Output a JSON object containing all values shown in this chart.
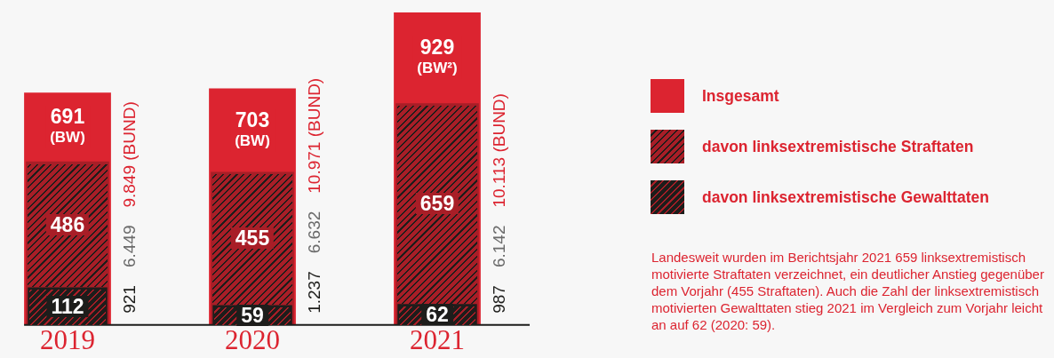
{
  "chart_data": {
    "type": "bar",
    "categories": [
      "2019",
      "2020",
      "2021"
    ],
    "series": [
      {
        "name": "Insgesamt",
        "color": "#dc2430",
        "values": [
          691,
          703,
          929
        ],
        "value_labels": [
          "691 (BW)",
          "703 (BW)",
          "929 (BW²)"
        ]
      },
      {
        "name": "davon linksextremistische Straftaten",
        "color": "#a81e27",
        "values": [
          486,
          455,
          659
        ],
        "value_labels": [
          "486",
          "455",
          "659"
        ]
      },
      {
        "name": "davon linksextremistische Gewalttaten",
        "color": "#1d1d1b",
        "values": [
          112,
          59,
          62
        ],
        "value_labels": [
          "112",
          "59",
          "62"
        ]
      }
    ],
    "legend": "right",
    "grid": false,
    "annotations": [
      "9.849 (BUND)",
      "6.449",
      "921",
      "10.971 (BUND)",
      "6.632",
      "1.237",
      "10.113 (BUND)",
      "6.142",
      "987",
      "Landesweit wurden im Berichtsjahr 2021 659 linksextremistisch motivierte Straftaten verzeichnet, ein deutlicher Anstieg gegenüber dem Vorjahr (455 Straftaten). Auch die Zahl der linksextremistisch motivierten Gewalttaten stieg 2021 im Vergleich zum Vorjahr leicht an auf 62 (2020: 59)."
    ]
  }
}
